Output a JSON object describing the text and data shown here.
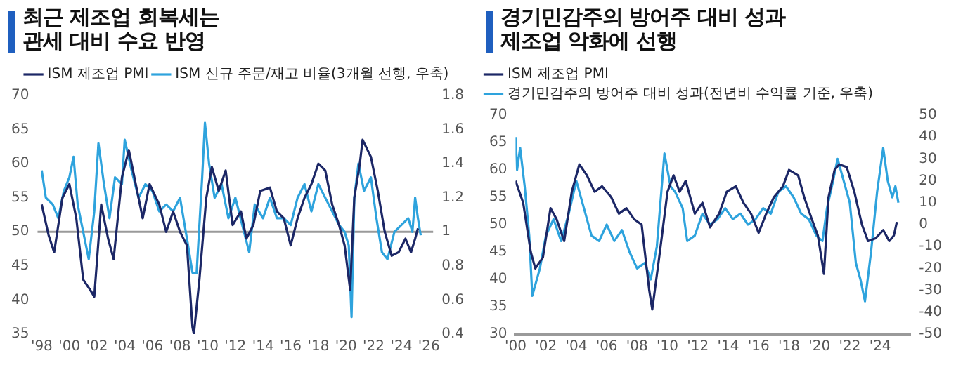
{
  "chart_data": [
    {
      "type": "line",
      "title": "최근 제조업 회복세는\n관세 대비 수요 반영",
      "legend": "top",
      "marker": "none",
      "grid": false,
      "xlim": [
        1997.7,
        2026.3
      ],
      "xticks": [
        {
          "value": 1998,
          "label": "'98"
        },
        {
          "value": 2000,
          "label": "'00"
        },
        {
          "value": 2002,
          "label": "'02"
        },
        {
          "value": 2004,
          "label": "'04"
        },
        {
          "value": 2006,
          "label": "'06"
        },
        {
          "value": 2008,
          "label": "'08"
        },
        {
          "value": 2010,
          "label": "'10"
        },
        {
          "value": 2012,
          "label": "'12"
        },
        {
          "value": 2014,
          "label": "'14"
        },
        {
          "value": 2016,
          "label": "'16"
        },
        {
          "value": 2018,
          "label": "'18"
        },
        {
          "value": 2020,
          "label": "'20"
        },
        {
          "value": 2022,
          "label": "'22"
        },
        {
          "value": 2024,
          "label": "'24"
        },
        {
          "value": 2026,
          "label": "'26"
        }
      ],
      "ylim": [
        35,
        70
      ],
      "yticks": [
        35,
        40,
        45,
        50,
        55,
        60,
        65,
        70
      ],
      "y2lim": [
        0.4,
        1.8
      ],
      "y2ticks": [
        0.4,
        0.6,
        0.8,
        1,
        1.2,
        1.4,
        1.6,
        1.8
      ],
      "ref_lines": [
        {
          "axis": "y",
          "value": 50,
          "color": "#9a9a9a"
        }
      ],
      "series": [
        {
          "name": "ISM 제조업 PMI",
          "color": "#1c2766",
          "x": [
            1998.0,
            1998.5,
            1998.9,
            1999.5,
            2000.0,
            2000.5,
            2001.0,
            2001.5,
            2001.8,
            2002.3,
            2002.8,
            2003.2,
            2003.8,
            2004.3,
            2004.8,
            2005.3,
            2005.8,
            2006.5,
            2007.0,
            2007.5,
            2008.0,
            2008.5,
            2008.9,
            2009.0,
            2009.4,
            2009.9,
            2010.3,
            2010.8,
            2011.3,
            2011.8,
            2012.4,
            2012.8,
            2013.3,
            2013.8,
            2014.5,
            2015.0,
            2015.5,
            2016.0,
            2016.5,
            2017.0,
            2017.5,
            2018.0,
            2018.5,
            2019.0,
            2019.5,
            2019.9,
            2020.3,
            2020.6,
            2021.0,
            2021.2,
            2021.8,
            2022.3,
            2022.8,
            2023.3,
            2023.8,
            2024.3,
            2024.7,
            2025.0,
            2025.2
          ],
          "values": [
            54,
            49.5,
            47,
            55,
            57,
            52,
            43,
            41.5,
            40.5,
            54,
            49,
            46,
            58,
            62,
            57,
            52,
            57,
            54,
            50,
            53,
            50,
            48,
            36,
            35,
            43,
            55,
            59.5,
            56,
            59,
            51,
            53,
            49,
            51,
            56,
            56.5,
            53,
            52,
            48,
            52,
            55,
            57,
            60,
            59,
            54,
            51,
            48,
            41.5,
            55,
            60,
            63.5,
            61,
            56,
            50,
            46.5,
            47,
            49,
            47,
            49,
            50.5
          ]
        },
        {
          "name": "ISM 신규 주문/재고 비율(3개월 선행, 우축)",
          "color": "#2ea3dd",
          "axis": "y2",
          "x": [
            1998.0,
            1998.3,
            1998.8,
            1999.2,
            1999.6,
            2000.0,
            2000.3,
            2000.6,
            2001.0,
            2001.4,
            2001.8,
            2002.1,
            2002.5,
            2002.9,
            2003.3,
            2003.8,
            2004.0,
            2004.5,
            2005.0,
            2005.5,
            2006.0,
            2006.5,
            2007.0,
            2007.5,
            2008.0,
            2008.5,
            2008.9,
            2009.2,
            2009.6,
            2009.8,
            2010.1,
            2010.5,
            2011.0,
            2011.5,
            2012.0,
            2012.5,
            2013.0,
            2013.4,
            2014.0,
            2014.5,
            2015.0,
            2015.5,
            2016.0,
            2016.5,
            2017.0,
            2017.5,
            2018.0,
            2018.5,
            2019.0,
            2019.5,
            2019.9,
            2020.2,
            2020.4,
            2020.6,
            2020.9,
            2021.3,
            2021.8,
            2022.2,
            2022.6,
            2023.0,
            2023.5,
            2024.0,
            2024.5,
            2024.8,
            2025.0,
            2025.2,
            2025.4
          ],
          "values": [
            1.36,
            1.2,
            1.16,
            1.08,
            1.24,
            1.32,
            1.44,
            1.16,
            1.0,
            0.84,
            1.12,
            1.52,
            1.28,
            1.08,
            1.32,
            1.28,
            1.54,
            1.36,
            1.2,
            1.28,
            1.24,
            1.12,
            1.16,
            1.12,
            1.2,
            0.96,
            0.76,
            0.76,
            1.32,
            1.64,
            1.4,
            1.2,
            1.28,
            1.08,
            1.2,
            1.04,
            0.88,
            1.16,
            1.08,
            1.2,
            1.08,
            1.08,
            1.04,
            1.2,
            1.28,
            1.12,
            1.28,
            1.2,
            1.12,
            1.04,
            1.0,
            0.92,
            0.5,
            1.2,
            1.4,
            1.24,
            1.32,
            1.08,
            0.88,
            0.84,
            1.0,
            1.04,
            1.08,
            1.0,
            1.2,
            1.08,
            0.98
          ]
        }
      ]
    },
    {
      "type": "line",
      "title": "경기민감주의 방어주 대비 성과\n제조업 악화에 선행",
      "legend": "top left",
      "marker": "none",
      "grid": false,
      "xlim": [
        2000,
        2026
      ],
      "xticks": [
        {
          "value": 2000,
          "label": "'00"
        },
        {
          "value": 2002,
          "label": "'02"
        },
        {
          "value": 2004,
          "label": "'04"
        },
        {
          "value": 2006,
          "label": "'06"
        },
        {
          "value": 2008,
          "label": "'08"
        },
        {
          "value": 2010,
          "label": "'10"
        },
        {
          "value": 2012,
          "label": "'12"
        },
        {
          "value": 2014,
          "label": "'14"
        },
        {
          "value": 2016,
          "label": "'16"
        },
        {
          "value": 2018,
          "label": "'18"
        },
        {
          "value": 2020,
          "label": "'20"
        },
        {
          "value": 2022,
          "label": "'22"
        },
        {
          "value": 2024,
          "label": "'24"
        }
      ],
      "ylim": [
        30,
        70
      ],
      "yticks": [
        30,
        35,
        40,
        45,
        50,
        55,
        60,
        65,
        70
      ],
      "y2lim": [
        -50,
        50
      ],
      "y2ticks": [
        -50,
        -40,
        -30,
        -20,
        -10,
        0,
        10,
        20,
        30,
        40,
        50
      ],
      "series": [
        {
          "name": "ISM 제조업 PMI",
          "color": "#1c2766",
          "x": [
            2000.0,
            2000.5,
            2001.0,
            2001.3,
            2001.8,
            2002.3,
            2002.7,
            2003.2,
            2003.7,
            2004.2,
            2004.7,
            2005.2,
            2005.7,
            2006.3,
            2006.8,
            2007.3,
            2007.8,
            2008.3,
            2008.8,
            2009.0,
            2009.5,
            2010.0,
            2010.4,
            2010.8,
            2011.2,
            2011.8,
            2012.3,
            2012.8,
            2013.4,
            2013.9,
            2014.5,
            2015.0,
            2015.5,
            2016.0,
            2016.5,
            2017.0,
            2017.6,
            2018.0,
            2018.6,
            2019.0,
            2019.5,
            2019.9,
            2020.3,
            2020.6,
            2021.0,
            2021.3,
            2021.8,
            2022.3,
            2022.8,
            2023.2,
            2023.7,
            2024.2,
            2024.6,
            2024.9,
            2025.1
          ],
          "values": [
            58,
            54,
            45,
            42,
            44,
            53,
            51,
            47,
            56,
            61,
            59,
            56,
            57,
            55,
            52,
            53,
            51,
            50,
            38,
            34.5,
            45,
            56,
            59,
            56,
            58,
            52,
            54,
            49.5,
            52,
            56,
            57,
            54,
            52,
            48.5,
            52,
            55,
            57,
            60,
            59,
            55,
            51,
            48,
            41,
            55,
            60,
            61,
            60.5,
            56,
            50,
            47,
            47.5,
            49,
            47,
            48,
            50.5
          ]
        },
        {
          "name": "경기민감주의 방어주 대비 성과(전년비 수익률 기준, 우축)",
          "color": "#2ea3dd",
          "axis": "y2",
          "x": [
            2000.0,
            2000.1,
            2000.3,
            2000.6,
            2000.9,
            2001.1,
            2001.3,
            2001.6,
            2002.0,
            2002.5,
            2003.0,
            2003.5,
            2004.0,
            2004.5,
            2005.0,
            2005.5,
            2006.0,
            2006.5,
            2007.0,
            2007.5,
            2008.0,
            2008.5,
            2008.9,
            2009.3,
            2009.8,
            2010.2,
            2010.5,
            2011.0,
            2011.3,
            2011.8,
            2012.3,
            2012.8,
            2013.3,
            2013.8,
            2014.3,
            2014.8,
            2015.3,
            2015.8,
            2016.3,
            2016.8,
            2017.3,
            2017.8,
            2018.3,
            2018.8,
            2019.3,
            2019.8,
            2020.2,
            2020.5,
            2020.9,
            2021.2,
            2021.6,
            2022.0,
            2022.4,
            2022.7,
            2023.0,
            2023.4,
            2023.8,
            2024.2,
            2024.5,
            2024.8,
            2025.0,
            2025.2
          ],
          "values": [
            40,
            25,
            35,
            17.5,
            -5,
            -32.5,
            -27.5,
            -20,
            -5,
            2.5,
            -7.5,
            5,
            20,
            7.5,
            -5,
            -7.5,
            0,
            -7.5,
            -2.5,
            -12.5,
            -20,
            -17.5,
            -25,
            -10,
            32.5,
            17.5,
            15,
            7.5,
            -7.5,
            -5,
            5,
            0,
            2.5,
            7.5,
            2.5,
            5,
            0,
            2.5,
            7.5,
            5,
            15,
            17.5,
            12.5,
            5,
            2.5,
            -5,
            -7.5,
            7.5,
            20,
            30,
            20,
            10,
            -17.5,
            -25,
            -35,
            -12.5,
            15,
            35,
            20,
            12.5,
            17.5,
            10
          ]
        }
      ]
    }
  ]
}
